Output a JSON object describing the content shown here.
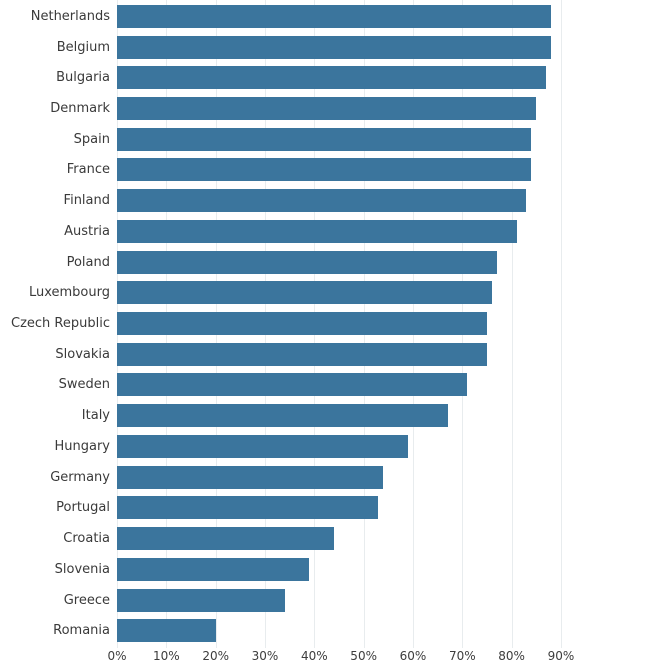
{
  "chart_data": {
    "type": "bar",
    "orientation": "horizontal",
    "title": "",
    "xlabel": "",
    "ylabel": "",
    "categories": [
      "Netherlands",
      "Belgium",
      "Bulgaria",
      "Denmark",
      "Spain",
      "France",
      "Finland",
      "Austria",
      "Poland",
      "Luxembourg",
      "Czech Republic",
      "Slovakia",
      "Sweden",
      "Italy",
      "Hungary",
      "Germany",
      "Portugal",
      "Croatia",
      "Slovenia",
      "Greece",
      "Romania"
    ],
    "values": [
      88,
      88,
      87,
      85,
      84,
      84,
      83,
      81,
      77,
      76,
      75,
      75,
      71,
      67,
      59,
      54,
      53,
      44,
      39,
      34,
      20
    ],
    "unit": "%",
    "xlim": [
      0,
      90
    ],
    "x_tick_values": [
      0,
      10,
      20,
      30,
      40,
      50,
      60,
      70,
      80,
      90
    ],
    "x_tick_labels": [
      "0%",
      "10%",
      "20%",
      "30%",
      "40%",
      "50%",
      "60%",
      "70%",
      "80%",
      "90%"
    ],
    "grid": true,
    "legend": false,
    "colors": {
      "bar": "#35719a",
      "gridline": "#e8ecee",
      "category_label": "#3a3a3a",
      "tick_label": "#3d3d3d",
      "background": "#ffffff"
    }
  }
}
